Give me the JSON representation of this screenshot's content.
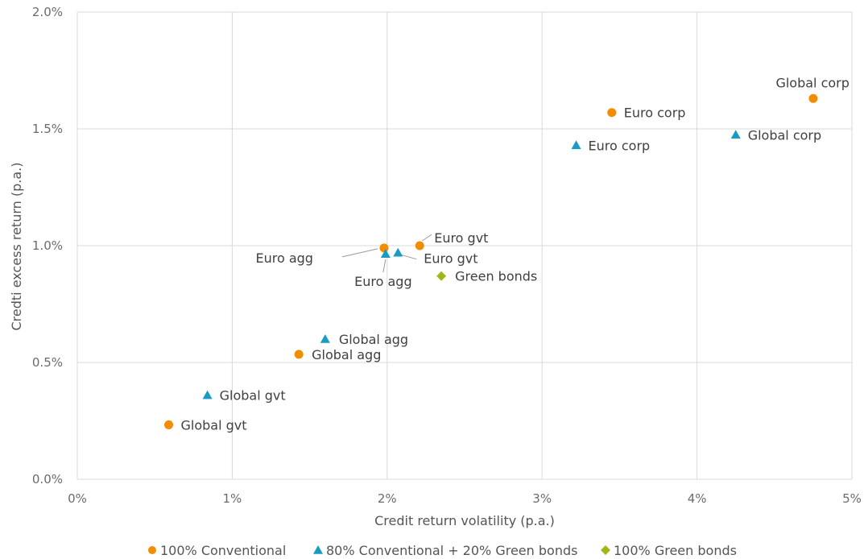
{
  "chart_data": {
    "type": "scatter",
    "xlabel": "Credit return volatility (p.a.)",
    "ylabel": "Credti excess return (p.a.)",
    "xlim": [
      0,
      5
    ],
    "ylim": [
      0,
      2.0
    ],
    "x_ticks": [
      "0%",
      "1%",
      "2%",
      "3%",
      "4%",
      "5%"
    ],
    "y_ticks": [
      "0.0%",
      "0.5%",
      "1.0%",
      "1.5%",
      "2.0%"
    ],
    "grid": true,
    "legend_position": "bottom",
    "series": [
      {
        "name": "100% Conventional",
        "marker": "circle",
        "color": "#f28c00",
        "points": [
          {
            "label": "Global gvt",
            "x": 0.59,
            "y": 0.233
          },
          {
            "label": "Global agg",
            "x": 1.43,
            "y": 0.535
          },
          {
            "label": "Euro agg",
            "x": 1.98,
            "y": 0.99
          },
          {
            "label": "Euro gvt",
            "x": 2.21,
            "y": 1.0
          },
          {
            "label": "Euro corp",
            "x": 3.45,
            "y": 1.57
          },
          {
            "label": "Global corp",
            "x": 4.75,
            "y": 1.63
          }
        ]
      },
      {
        "name": "80% Conventional + 20% Green bonds",
        "marker": "triangle",
        "color": "#1a9bc2",
        "points": [
          {
            "label": "Global gvt",
            "x": 0.84,
            "y": 0.36
          },
          {
            "label": "Global agg",
            "x": 1.6,
            "y": 0.6
          },
          {
            "label": "Euro agg",
            "x": 1.99,
            "y": 0.965
          },
          {
            "label": "Euro gvt",
            "x": 2.07,
            "y": 0.97
          },
          {
            "label": "Euro corp",
            "x": 3.22,
            "y": 1.43
          },
          {
            "label": "Global corp",
            "x": 4.25,
            "y": 1.475
          }
        ]
      },
      {
        "name": "100% Green bonds",
        "marker": "diamond",
        "color": "#a3b517",
        "points": [
          {
            "label": "Green bonds",
            "x": 2.35,
            "y": 0.87
          }
        ]
      }
    ]
  }
}
